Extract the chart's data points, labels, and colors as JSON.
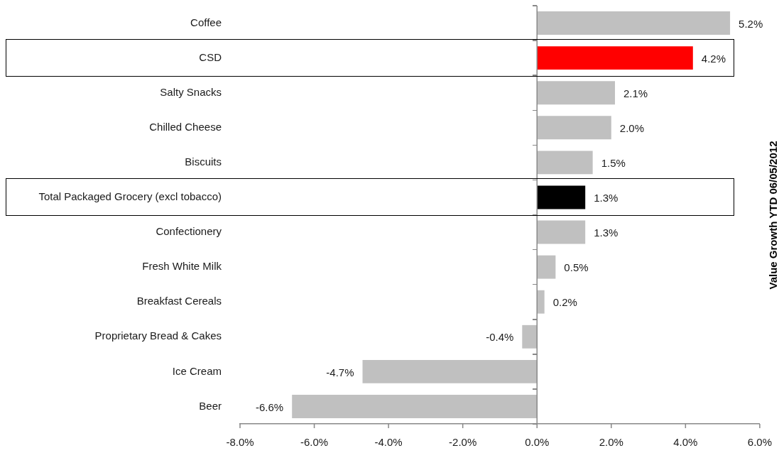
{
  "chart_data": {
    "type": "bar",
    "orientation": "horizontal",
    "y2label": "Value Growth YTD 06/05/2012",
    "categories": [
      "Coffee",
      "CSD",
      "Salty Snacks",
      "Chilled Cheese",
      "Biscuits",
      "Total Packaged Grocery (excl tobacco)",
      "Confectionery",
      "Fresh White Milk",
      "Breakfast Cereals",
      "Proprietary Bread & Cakes",
      "Ice Cream",
      "Beer"
    ],
    "values": [
      5.2,
      4.2,
      2.1,
      2.0,
      1.5,
      1.3,
      1.3,
      0.5,
      0.2,
      -0.4,
      -4.7,
      -6.6
    ],
    "colors": [
      "#c0c0c0",
      "#ff0000",
      "#c0c0c0",
      "#c0c0c0",
      "#c0c0c0",
      "#000000",
      "#c0c0c0",
      "#c0c0c0",
      "#c0c0c0",
      "#c0c0c0",
      "#c0c0c0",
      "#c0c0c0"
    ],
    "value_labels": [
      "5.2%",
      "4.2%",
      "2.1%",
      "2.0%",
      "1.5%",
      "1.3%",
      "1.3%",
      "0.5%",
      "0.2%",
      "-0.4%",
      "-4.7%",
      "-6.6%"
    ],
    "xlim": [
      -8,
      6
    ],
    "xticks": [
      {
        "value": -8,
        "label": "-8.0%"
      },
      {
        "value": -6,
        "label": "-6.0%"
      },
      {
        "value": -4,
        "label": "-4.0%"
      },
      {
        "value": -2,
        "label": "-2.0%"
      },
      {
        "value": 0,
        "label": "0.0%"
      },
      {
        "value": 2,
        "label": "2.0%"
      },
      {
        "value": 4,
        "label": "4.0%"
      },
      {
        "value": 6,
        "label": "6.0%"
      }
    ],
    "ref_lines": [
      {
        "axis": "x",
        "value": 0,
        "color": "#888888"
      }
    ],
    "grid": false,
    "legend": false
  }
}
